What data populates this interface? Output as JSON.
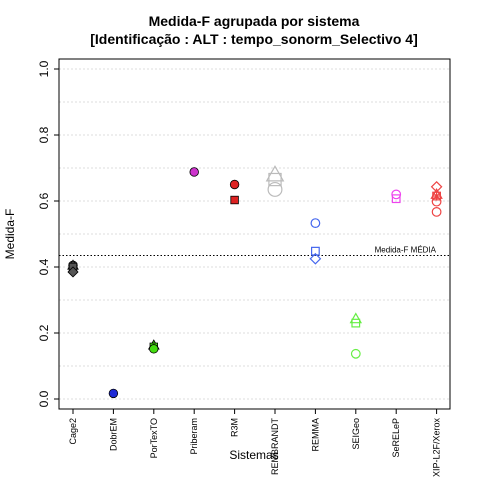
{
  "chart_data": {
    "type": "scatter",
    "title": "Medida-F agrupada por sistema",
    "subtitle": "[Identificação : ALT : tempo_sonorm_Selectivo 4]",
    "xlabel": "Sistemas",
    "ylabel": "Medida-F",
    "ylim": [
      0,
      1
    ],
    "yticks": [
      "0.0",
      "0.2",
      "0.4",
      "0.6",
      "0.8",
      "1.0"
    ],
    "grid": "horizontal dotted",
    "categories": [
      "Cage2",
      "DobrEM",
      "PorTexTO",
      "Priberam",
      "R3M",
      "REMBRANDT",
      "REMMA",
      "SEIGeo",
      "SeRELeP",
      "XIP-L2F/Xerox"
    ],
    "reference_line": {
      "label": "Medida-F MÉDIA",
      "value": 0.435
    },
    "series": [
      {
        "category": "Cage2",
        "color": "#555555",
        "points": [
          {
            "shape": "circle",
            "y": 0.405,
            "filled": true
          },
          {
            "shape": "triangle",
            "y": 0.405,
            "filled": true
          },
          {
            "shape": "square",
            "y": 0.4,
            "filled": true
          },
          {
            "shape": "diamond",
            "y": 0.385,
            "filled": true
          }
        ]
      },
      {
        "category": "DobrEM",
        "color": "#1f2bd6",
        "points": [
          {
            "shape": "circle",
            "y": 0.017,
            "filled": true
          }
        ]
      },
      {
        "category": "PorTexTO",
        "color": "#44dd11",
        "points": [
          {
            "shape": "triangle",
            "y": 0.163,
            "filled": true
          },
          {
            "shape": "square",
            "y": 0.158,
            "filled": true
          },
          {
            "shape": "circle",
            "y": 0.152,
            "filled": true
          }
        ]
      },
      {
        "category": "Priberam",
        "color": "#cc33cc",
        "points": [
          {
            "shape": "circle",
            "y": 0.688,
            "filled": true
          }
        ]
      },
      {
        "category": "R3M",
        "color": "#dd2222",
        "points": [
          {
            "shape": "circle",
            "y": 0.65,
            "filled": true
          },
          {
            "shape": "square",
            "y": 0.603,
            "filled": true
          }
        ]
      },
      {
        "category": "REMBRANDT",
        "color": "#bbbbbb",
        "points": [
          {
            "shape": "triangle",
            "y": 0.68,
            "filled": false,
            "size": "large"
          },
          {
            "shape": "square",
            "y": 0.665,
            "filled": false,
            "size": "large"
          },
          {
            "shape": "circle",
            "y": 0.635,
            "filled": false,
            "size": "large"
          }
        ]
      },
      {
        "category": "REMMA",
        "color": "#4466ee",
        "points": [
          {
            "shape": "circle",
            "y": 0.533,
            "filled": false
          },
          {
            "shape": "square",
            "y": 0.448,
            "filled": false
          },
          {
            "shape": "diamond",
            "y": 0.425,
            "filled": false
          }
        ]
      },
      {
        "category": "SEIGeo",
        "color": "#66ee44",
        "points": [
          {
            "shape": "triangle",
            "y": 0.243,
            "filled": false
          },
          {
            "shape": "square",
            "y": 0.23,
            "filled": false
          },
          {
            "shape": "circle",
            "y": 0.137,
            "filled": false
          }
        ]
      },
      {
        "category": "SeRELeP",
        "color": "#ee44ee",
        "points": [
          {
            "shape": "circle",
            "y": 0.62,
            "filled": false
          },
          {
            "shape": "square",
            "y": 0.607,
            "filled": false
          }
        ]
      },
      {
        "category": "XIP-L2F/Xerox",
        "color": "#ee4444",
        "points": [
          {
            "shape": "diamond",
            "y": 0.643,
            "filled": false
          },
          {
            "shape": "triangle",
            "y": 0.62,
            "filled": false
          },
          {
            "shape": "square",
            "y": 0.615,
            "filled": false
          },
          {
            "shape": "asterisk",
            "y": 0.615,
            "filled": false
          },
          {
            "shape": "circle",
            "y": 0.598,
            "filled": false
          },
          {
            "shape": "circle",
            "y": 0.567,
            "filled": false
          }
        ]
      }
    ]
  }
}
